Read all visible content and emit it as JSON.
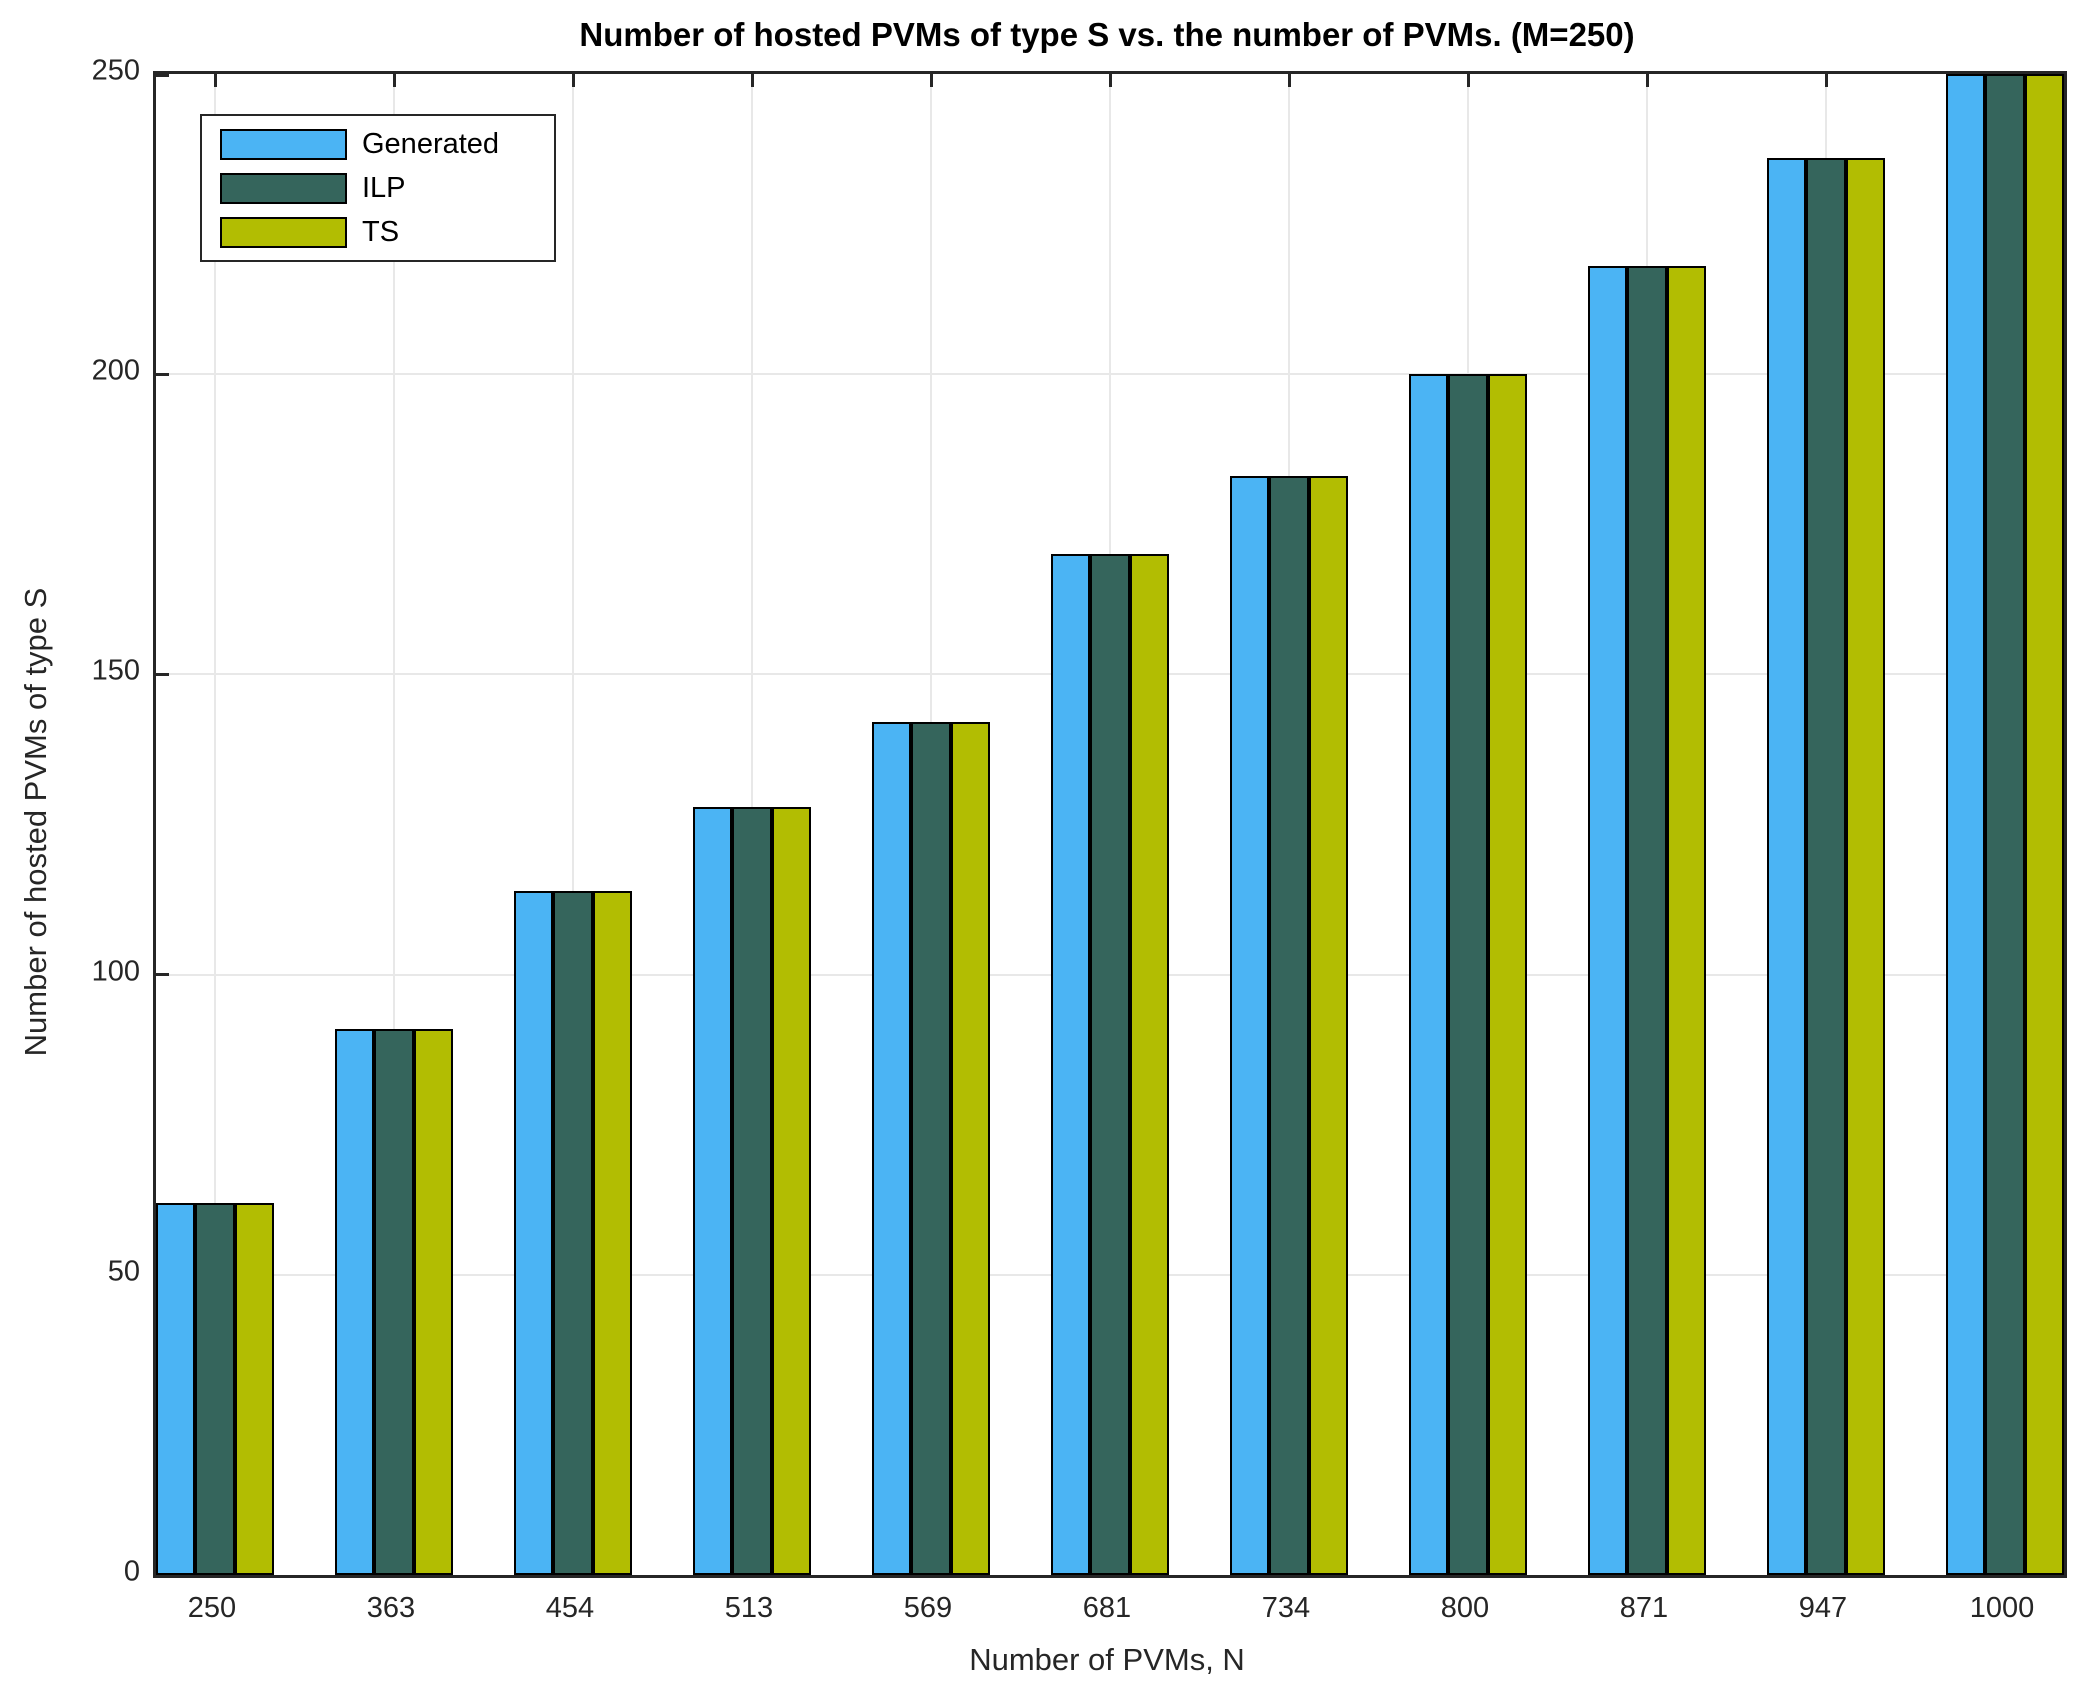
{
  "title": "Number of hosted PVMs of type S vs. the number of PVMs. (M=250)",
  "chart_data": {
    "type": "bar",
    "categories": [
      "250",
      "363",
      "454",
      "513",
      "569",
      "681",
      "734",
      "800",
      "871",
      "947",
      "1000"
    ],
    "series": [
      {
        "name": "Generated",
        "color": "#4bb4f4",
        "values": [
          62,
          91,
          114,
          128,
          142,
          170,
          183,
          200,
          218,
          236,
          250
        ]
      },
      {
        "name": "ILP",
        "color": "#35655c",
        "values": [
          62,
          91,
          114,
          128,
          142,
          170,
          183,
          200,
          218,
          236,
          250
        ]
      },
      {
        "name": "TS",
        "color": "#b2bd02",
        "values": [
          62,
          91,
          114,
          128,
          142,
          170,
          183,
          200,
          218,
          236,
          250
        ]
      }
    ],
    "xlabel": "Number of PVMs, N",
    "ylabel": "Number of hosted PVMs of type S",
    "ylim": [
      0,
      250
    ],
    "yticks": [
      0,
      50,
      100,
      150,
      200,
      250
    ],
    "grid": "on",
    "legend_position": "top-left",
    "axis_color": "#262626",
    "grid_color": "#e8e8e8",
    "bar_edge_color": "#000000"
  }
}
